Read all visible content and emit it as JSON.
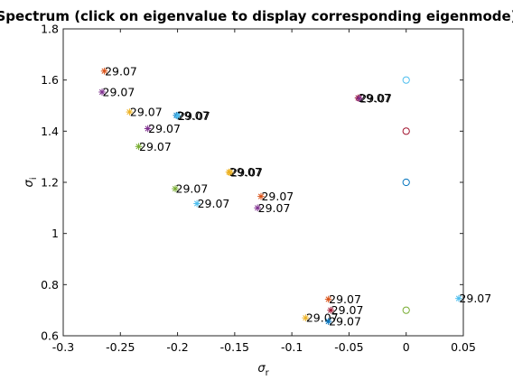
{
  "chart_data": {
    "type": "scatter",
    "title": "Spectrum (click on eigenvalue to display corresponding eigenmode)",
    "xlabel": "σ",
    "xlabel_sub": "r",
    "ylabel": "σ",
    "ylabel_sub": "i",
    "xlim": [
      -0.3,
      0.05
    ],
    "ylim": [
      0.6,
      1.8
    ],
    "xticks": [
      -0.3,
      -0.25,
      -0.2,
      -0.15,
      -0.1,
      -0.05,
      0,
      0.05
    ],
    "xtick_labels": [
      "-0.3",
      "-0.25",
      "-0.2",
      "-0.15",
      "-0.1",
      "-0.05",
      "0",
      "0.05"
    ],
    "yticks": [
      0.6,
      0.8,
      1.0,
      1.2,
      1.4,
      1.6,
      1.8
    ],
    "ytick_labels": [
      "0.6",
      "0.8",
      "1",
      "1.2",
      "1.4",
      "1.6",
      "1.8"
    ],
    "grid": false,
    "eigenvalue_points": [
      {
        "x": -0.264,
        "y": 1.635,
        "marker": "*",
        "color": "#d95319",
        "label": "29.07"
      },
      {
        "x": -0.266,
        "y": 1.553,
        "marker": "*",
        "color": "#7e2f8e",
        "label": "29.07"
      },
      {
        "x": -0.242,
        "y": 1.475,
        "marker": "*",
        "color": "#edb120",
        "label": "29.07"
      },
      {
        "x": -0.201,
        "y": 1.462,
        "marker": "*",
        "color": "#0072bd",
        "label": "29.07"
      },
      {
        "x": -0.2,
        "y": 1.46,
        "marker": "*",
        "color": "#4dbeee",
        "label": "29.07"
      },
      {
        "x": -0.226,
        "y": 1.41,
        "marker": "*",
        "color": "#7e2f8e",
        "label": "29.07"
      },
      {
        "x": -0.234,
        "y": 1.34,
        "marker": "*",
        "color": "#77ac30",
        "label": "29.07"
      },
      {
        "x": -0.155,
        "y": 1.24,
        "marker": "*",
        "color": "#edb120",
        "label": "29.07"
      },
      {
        "x": -0.154,
        "y": 1.238,
        "marker": "*",
        "color": "#edb120",
        "label": "29.07"
      },
      {
        "x": -0.202,
        "y": 1.175,
        "marker": "*",
        "color": "#77ac30",
        "label": "29.07"
      },
      {
        "x": -0.127,
        "y": 1.145,
        "marker": "*",
        "color": "#d95319",
        "label": "29.07"
      },
      {
        "x": -0.183,
        "y": 1.117,
        "marker": "*",
        "color": "#4dbeee",
        "label": "29.07"
      },
      {
        "x": -0.13,
        "y": 1.1,
        "marker": "*",
        "color": "#7e2f8e",
        "label": "29.07"
      },
      {
        "x": -0.042,
        "y": 1.53,
        "marker": "*",
        "color": "#a2142f",
        "label": "29.07"
      },
      {
        "x": -0.041,
        "y": 1.528,
        "marker": "*",
        "color": "#7e2f8e",
        "label": "29.07"
      },
      {
        "x": -0.068,
        "y": 0.743,
        "marker": "*",
        "color": "#d95319",
        "label": "29.07"
      },
      {
        "x": -0.066,
        "y": 0.7,
        "marker": "*",
        "color": "#a2142f",
        "label": "29.07"
      },
      {
        "x": -0.088,
        "y": 0.67,
        "marker": "*",
        "color": "#edb120",
        "label": "29.07"
      },
      {
        "x": -0.068,
        "y": 0.656,
        "marker": "*",
        "color": "#0072bd",
        "label": "29.07"
      },
      {
        "x": 0.046,
        "y": 0.746,
        "marker": "*",
        "color": "#4dbeee",
        "label": "29.07"
      }
    ],
    "circle_points": [
      {
        "x": 0,
        "y": 1.6,
        "marker": "o",
        "color": "#4dbeee"
      },
      {
        "x": 0,
        "y": 1.4,
        "marker": "o",
        "color": "#a2142f"
      },
      {
        "x": 0,
        "y": 1.2,
        "marker": "o",
        "color": "#0072bd"
      },
      {
        "x": 0,
        "y": 0.7,
        "marker": "o",
        "color": "#77ac30"
      }
    ]
  }
}
